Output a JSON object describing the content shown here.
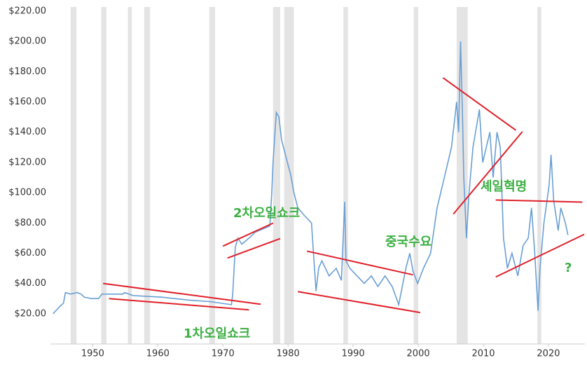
{
  "chart_data": {
    "type": "line",
    "color": "#6a9fd4",
    "trend_color": "#e0202a",
    "recession_color": "#e4e4e4",
    "xlim": [
      1943.5,
      2025.6
    ],
    "xticks": [
      1950,
      1960,
      1970,
      1980,
      1990,
      2000,
      2010,
      2020
    ],
    "ylim": [
      0,
      220
    ],
    "yticks": [
      {
        "value": 20,
        "label": "$20.00"
      },
      {
        "value": 40,
        "label": "$40.00"
      },
      {
        "value": 60,
        "label": "$60.00"
      },
      {
        "value": 80,
        "label": "$80.00"
      },
      {
        "value": 100,
        "label": "$100.00"
      },
      {
        "value": 120,
        "label": "$120.00"
      },
      {
        "value": 140,
        "label": "$140.00"
      },
      {
        "value": 160,
        "label": "$160.00"
      },
      {
        "value": 180,
        "label": "$180.00"
      },
      {
        "value": 200,
        "label": "$200.00"
      },
      {
        "value": 220,
        "label": "$220.00"
      }
    ],
    "recessions": [
      [
        1946.6,
        1947.5
      ],
      [
        1951.3,
        1952.1
      ],
      [
        1955.4,
        1956.0
      ],
      [
        1957.9,
        1958.8
      ],
      [
        1967.9,
        1968.8
      ],
      [
        1977.7,
        1978.8
      ],
      [
        1979.4,
        1980.9
      ],
      [
        1988.5,
        1989.2
      ],
      [
        1999.3,
        2000.0
      ],
      [
        2005.9,
        2007.6
      ],
      [
        2018.3,
        2018.9
      ]
    ],
    "x": [
      1943.9,
      1945.0,
      1945.5,
      1945.8,
      1946.6,
      1947.6,
      1948.2,
      1948.7,
      1949.8,
      1950.9,
      1951.4,
      1954.6,
      1954.9,
      1956.2,
      1960.5,
      1964.8,
      1968.0,
      1971.3,
      1971.5,
      1971.9,
      1972.3,
      1972.9,
      1974.0,
      1975.0,
      1976.1,
      1977.2,
      1977.5,
      1977.7,
      1978.0,
      1978.2,
      1978.6,
      1979.0,
      1979.3,
      1979.9,
      1980.4,
      1980.9,
      1981.5,
      1982.5,
      1983.6,
      1983.9,
      1984.3,
      1984.7,
      1985.2,
      1986.3,
      1987.4,
      1988.2,
      1988.7,
      1988.9,
      1989.5,
      1990.6,
      1991.7,
      1992.8,
      1993.8,
      1994.9,
      1996.0,
      1997.0,
      1998.1,
      1998.7,
      1999.2,
      1999.9,
      2000.8,
      2001.9,
      2002.9,
      2004.0,
      2005.1,
      2005.9,
      2006.2,
      2006.5,
      2006.8,
      2007.0,
      2007.4,
      2007.8,
      2008.4,
      2009.4,
      2009.9,
      2011.0,
      2011.5,
      2012.1,
      2012.6,
      2013.1,
      2013.7,
      2014.4,
      2015.3,
      2016.1,
      2016.9,
      2017.4,
      2017.9,
      2018.4,
      2018.7,
      2019.3,
      2020.1,
      2020.4,
      2020.8,
      2021.5,
      2021.9,
      2022.6,
      2023.0
    ],
    "values": [
      20,
      25,
      27,
      34,
      33,
      34,
      33,
      31,
      30,
      30,
      33,
      33,
      34,
      32,
      31,
      29,
      28,
      26,
      33,
      64,
      70,
      66,
      70,
      74,
      76,
      78,
      100,
      120,
      140,
      153,
      150,
      135,
      130,
      120,
      112,
      100,
      90,
      85,
      80,
      60,
      35,
      50,
      55,
      45,
      50,
      42,
      94,
      55,
      50,
      45,
      40,
      45,
      38,
      45,
      38,
      26,
      50,
      60,
      48,
      40,
      50,
      60,
      90,
      110,
      130,
      160,
      140,
      200,
      150,
      110,
      70,
      100,
      130,
      155,
      120,
      140,
      110,
      140,
      130,
      70,
      50,
      60,
      45,
      65,
      70,
      90,
      60,
      22,
      50,
      80,
      105,
      125,
      95,
      75,
      90,
      80,
      72
    ],
    "trend_lines": [
      {
        "x": [
          1951.6,
          1975.8
        ],
        "y": [
          40,
          26.3
        ]
      },
      {
        "x": [
          1952.5,
          1974.0
        ],
        "y": [
          30.0,
          22.6
        ]
      },
      {
        "x": [
          1970.0,
          1977.7
        ],
        "y": [
          64.7,
          79.9
        ]
      },
      {
        "x": [
          1970.7,
          1978.8
        ],
        "y": [
          56.8,
          69.7
        ]
      },
      {
        "x": [
          1982.9,
          1999.2
        ],
        "y": [
          61.4,
          45.7
        ]
      },
      {
        "x": [
          1981.5,
          2000.3
        ],
        "y": [
          34.6,
          20.8
        ]
      },
      {
        "x": [
          2003.8,
          2015.0
        ],
        "y": [
          176.0,
          141.3
        ]
      },
      {
        "x": [
          2005.4,
          2016.0
        ],
        "y": [
          85.9,
          140.4
        ]
      },
      {
        "x": [
          2011.9,
          2025.2
        ],
        "y": [
          95.2,
          93.8
        ]
      },
      {
        "x": [
          2011.9,
          2025.5
        ],
        "y": [
          44.3,
          72.5
        ]
      }
    ],
    "annotations": [
      "2차오일쇼크",
      "1차오일쇼크",
      "중국수요",
      "셰일혁명",
      "?"
    ]
  }
}
